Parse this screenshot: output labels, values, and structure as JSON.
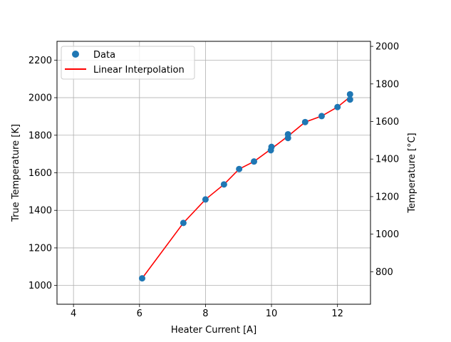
{
  "chart_data": {
    "type": "scatter",
    "xlabel": "Heater Current [A]",
    "ylabel": "True Temperature [K]",
    "ylabel_right": "Temperature [°C]",
    "xlim": [
      3.5,
      13.0
    ],
    "ylim": [
      900,
      2300
    ],
    "ylim_right": [
      626.85,
      2026.85
    ],
    "x_ticks": [
      4,
      6,
      8,
      10,
      12
    ],
    "y_ticks": [
      1000,
      1200,
      1400,
      1600,
      1800,
      2000,
      2200
    ],
    "y_ticks_right": [
      800,
      1000,
      1200,
      1400,
      1600,
      1800,
      2000
    ],
    "grid": true,
    "legend_position": "upper-left",
    "series": [
      {
        "name": "Data",
        "kind": "scatter",
        "color": "#1f77b4",
        "x": [
          6.08,
          7.33,
          8.0,
          8.56,
          9.02,
          9.47,
          9.98,
          10.0,
          10.5,
          10.5,
          11.02,
          11.52,
          12.0,
          12.38,
          12.38
        ],
        "y": [
          1038,
          1333,
          1458,
          1538,
          1620,
          1660,
          1720,
          1738,
          1785,
          1805,
          1870,
          1902,
          1950,
          1990,
          2018
        ]
      },
      {
        "name": "Linear Interpolation",
        "kind": "line",
        "color": "#ff0000",
        "x": [
          6.08,
          7.33,
          8.0,
          8.56,
          9.02,
          9.47,
          10.0,
          10.5,
          11.02,
          11.52,
          12.0,
          12.38
        ],
        "y": [
          1038,
          1333,
          1458,
          1538,
          1620,
          1660,
          1728,
          1795,
          1870,
          1902,
          1950,
          2004
        ]
      }
    ]
  }
}
